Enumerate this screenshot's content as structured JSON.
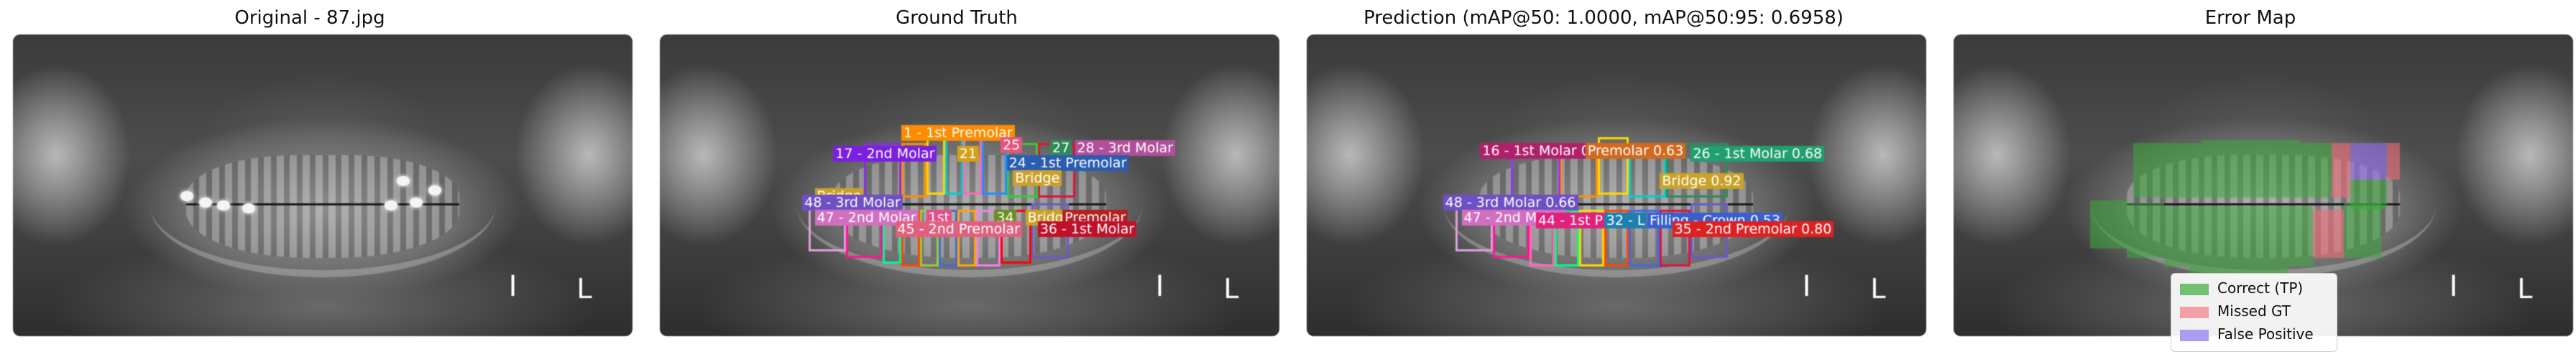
{
  "panels": [
    {
      "title": "Original - 87.jpg"
    },
    {
      "title": "Ground Truth"
    },
    {
      "title": "Prediction (mAP@50: 1.0000, mAP@50:95: 0.6958)"
    },
    {
      "title": "Error Map"
    }
  ],
  "ground_truth_labels": [
    "1 - 1st Premolar",
    "17 - 2nd Molar",
    "21",
    "25",
    "27",
    "28 - 3rd Molar",
    "24 - 1st Premolar",
    "Bridge",
    "Bridge",
    "48 - 3rd Molar",
    "47 - 2nd Molar",
    "1st",
    "34",
    "Bridge",
    "Premolar",
    "45 - 2nd Premolar",
    "36 - 1st Molar"
  ],
  "prediction_labels": [
    "16 - 1st Molar 0.55",
    "Premolar 0.63",
    "26 - 1st Molar 0.68",
    "Bridge 0.92",
    "48 - 3rd Molar 0.66",
    "47 - 2nd Molar",
    "44 - 1st P",
    "32 - L",
    "Filling - Crown 0.53",
    "35 - 2nd Premolar 0.80"
  ],
  "markers": {
    "letter_i": "I",
    "letter_l": "L"
  },
  "legend": [
    {
      "label": "Correct (TP)",
      "color": "#5cb85c"
    },
    {
      "label": "Missed GT",
      "color": "#f2a0a6"
    },
    {
      "label": "False Positive",
      "color": "#a99cf2"
    }
  ]
}
